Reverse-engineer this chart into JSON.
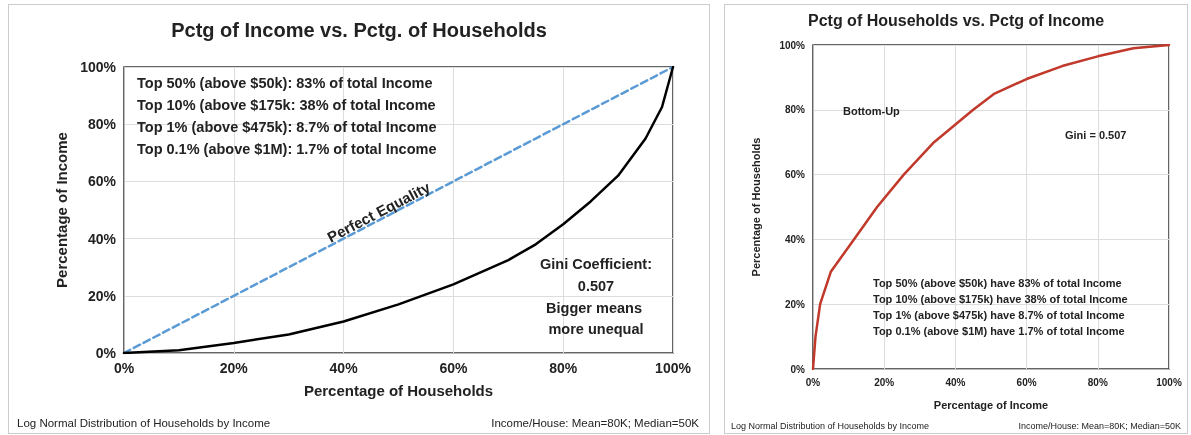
{
  "chart_data": [
    {
      "type": "line",
      "title": "Pctg of Income vs. Pctg. of Households",
      "xlabel": "Percentage of Households",
      "ylabel": "Percentage of Income",
      "series": [
        {
          "name": "Perfect Equality",
          "color": "#5b9bd5",
          "line_style": "dashed",
          "x": [
            0,
            100
          ],
          "values": [
            0,
            100
          ]
        },
        {
          "color": "#000000",
          "line_style": "solid",
          "x": [
            0,
            10,
            20,
            30,
            40,
            50,
            60,
            70,
            75,
            80,
            85,
            90,
            95,
            98,
            100
          ],
          "values": [
            0,
            1,
            3.5,
            6.5,
            11,
            17,
            24,
            32.5,
            38,
            45,
            53,
            62,
            75,
            86,
            100
          ]
        }
      ],
      "xlim": [
        0,
        100
      ],
      "ylim": [
        0,
        100
      ],
      "xticks": [
        {
          "value": 0,
          "label": "0%"
        },
        {
          "value": 20,
          "label": "20%"
        },
        {
          "value": 40,
          "label": "40%"
        },
        {
          "value": 60,
          "label": "60%"
        },
        {
          "value": 80,
          "label": "80%"
        },
        {
          "value": 100,
          "label": "100%"
        }
      ],
      "yticks": [
        {
          "value": 0,
          "label": "0%"
        },
        {
          "value": 20,
          "label": "20%"
        },
        {
          "value": 40,
          "label": "40%"
        },
        {
          "value": 60,
          "label": "60%"
        },
        {
          "value": 80,
          "label": "80%"
        },
        {
          "value": 100,
          "label": "100%"
        }
      ],
      "grid": true,
      "marker": "none",
      "annotations": [
        "Top 50% (above $50k): 83% of total Income",
        "Top 10% (above $175k: 38% of total Income",
        "Top 1% (above $475k): 8.7% of total Income",
        "Top 0.1% (above $1M): 1.7% of total Income",
        "Gini Coefficient:",
        "0.507",
        "Bigger means more unequal",
        "Log Normal Distribution of Households by Income",
        "Income/House: Mean=80K; Median=50K"
      ]
    },
    {
      "type": "line",
      "title": "Pctg of Households vs. Pctg of Income",
      "xlabel": "Percentage of Income",
      "ylabel": "Percentage of Households",
      "series": [
        {
          "color": "#c0392b",
          "line_style": "solid",
          "x": [
            0,
            0.7,
            2,
            5,
            11.5,
            18,
            25.5,
            34,
            45,
            51,
            60,
            70,
            80,
            90,
            100
          ],
          "values": [
            0,
            10,
            20,
            30,
            40,
            50,
            60,
            70,
            80,
            85,
            89.5,
            93.5,
            96.5,
            99,
            100
          ]
        }
      ],
      "xlim": [
        0,
        100
      ],
      "ylim": [
        0,
        100
      ],
      "xticks": [
        {
          "value": 0,
          "label": "0%"
        },
        {
          "value": 20,
          "label": "20%"
        },
        {
          "value": 40,
          "label": "40%"
        },
        {
          "value": 60,
          "label": "60%"
        },
        {
          "value": 80,
          "label": "80%"
        },
        {
          "value": 100,
          "label": "100%"
        }
      ],
      "yticks": [
        {
          "value": 0,
          "label": "0%"
        },
        {
          "value": 20,
          "label": "20%"
        },
        {
          "value": 40,
          "label": "40%"
        },
        {
          "value": 60,
          "label": "60%"
        },
        {
          "value": 80,
          "label": "80%"
        },
        {
          "value": 100,
          "label": "100%"
        }
      ],
      "grid": true,
      "marker": "none",
      "annotations": [
        "Bottom-Up",
        "Gini = 0.507",
        "Top 50% (above $50k) have 83% of total Income",
        "Top 10% (above $175k) have 38% of total Income",
        "Top 1% (above $475k) have 8.7% of total Income",
        "Top 0.1% (above $1M) have 1.7% of total Income",
        "Log Normal Distribution of Households by Income",
        "Income/House: Mean=80K; Median=50K"
      ]
    }
  ]
}
